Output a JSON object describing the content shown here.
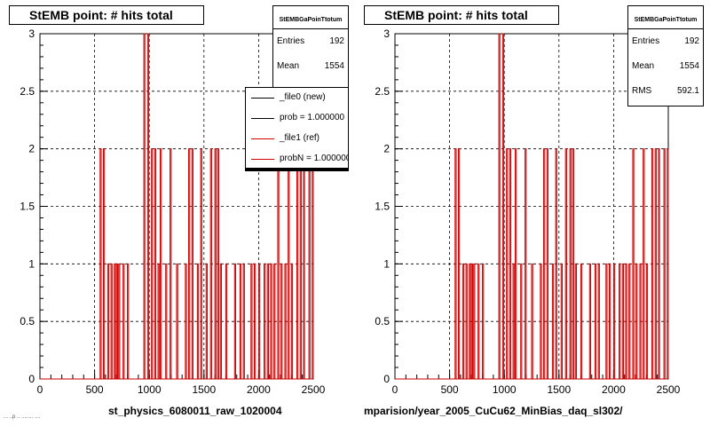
{
  "footer_text": "... ..p  ..  ........ ....",
  "legend": [
    {
      "label": "_file0 (new)",
      "color": "#000000"
    },
    {
      "label": "prob = 1.000000",
      "color": "#000000"
    },
    {
      "label": "_file1 (ref)",
      "color": "#cc0000"
    },
    {
      "label": "probN = 1.000000",
      "color": "#cc0000"
    }
  ],
  "chart_data": [
    {
      "type": "bar",
      "title": "StEMB point: # hits total",
      "xlabel": "st_physics_6080011_raw_1020004",
      "ylabel": "",
      "xlim": [
        0,
        2500
      ],
      "ylim": [
        0,
        3
      ],
      "grid": true,
      "xticks": [
        "0",
        "500",
        "1000",
        "1500",
        "2000",
        "2500"
      ],
      "yticks": [
        "0",
        "0.5",
        "1",
        "1.5",
        "2",
        "2.5",
        "3"
      ],
      "stats": {
        "name": "StEMBGaPoinTtotum",
        "entries_label": "Entries",
        "entries": "192",
        "mean_label": "Mean",
        "mean": "1554",
        "rms_label": "RMS",
        "rms": "592.1"
      },
      "series": [
        {
          "color": "#cc0000",
          "bins": [
            [
              550,
              2
            ],
            [
              580,
              2
            ],
            [
              620,
              1
            ],
            [
              650,
              1
            ],
            [
              680,
              1
            ],
            [
              700,
              1
            ],
            [
              720,
              1
            ],
            [
              760,
              1
            ],
            [
              800,
              1
            ],
            [
              950,
              3
            ],
            [
              985,
              3
            ],
            [
              1020,
              2
            ],
            [
              1050,
              2
            ],
            [
              1080,
              1
            ],
            [
              1100,
              2
            ],
            [
              1150,
              1
            ],
            [
              1190,
              2
            ],
            [
              1250,
              1
            ],
            [
              1330,
              1
            ],
            [
              1360,
              2
            ],
            [
              1390,
              2
            ],
            [
              1440,
              1
            ],
            [
              1470,
              2
            ],
            [
              1520,
              1
            ],
            [
              1560,
              2
            ],
            [
              1600,
              2
            ],
            [
              1625,
              2
            ],
            [
              1650,
              1
            ],
            [
              1700,
              1
            ],
            [
              1780,
              1
            ],
            [
              1830,
              1
            ],
            [
              1860,
              1
            ],
            [
              1930,
              1
            ],
            [
              1960,
              1
            ],
            [
              2000,
              1
            ],
            [
              2050,
              1
            ],
            [
              2080,
              1
            ],
            [
              2110,
              1
            ],
            [
              2140,
              1
            ],
            [
              2175,
              2
            ],
            [
              2205,
              1
            ],
            [
              2240,
              1
            ],
            [
              2270,
              2
            ],
            [
              2300,
              1
            ],
            [
              2350,
              2
            ],
            [
              2380,
              2
            ],
            [
              2410,
              2
            ],
            [
              2460,
              2
            ],
            [
              2490,
              2
            ]
          ]
        }
      ]
    },
    {
      "type": "bar",
      "title": "StEMB point: # hits total",
      "xlabel": "mparision/year_2005_CuCu62_MinBias_daq_sl302/",
      "ylabel": "",
      "xlim": [
        0,
        2500
      ],
      "ylim": [
        0,
        3
      ],
      "grid": true,
      "xticks": [
        "0",
        "500",
        "1000",
        "1500",
        "2000",
        "2500"
      ],
      "yticks": [
        "0",
        "0.5",
        "1",
        "1.5",
        "2",
        "2.5",
        "3"
      ],
      "stats": {
        "name": "StEMBGaPoinTtotum",
        "entries_label": "Entries",
        "entries": "192",
        "mean_label": "Mean",
        "mean": "1554",
        "rms_label": "RMS",
        "rms": "592.1"
      },
      "series": [
        {
          "color": "#cc0000",
          "bins": [
            [
              550,
              2
            ],
            [
              580,
              2
            ],
            [
              620,
              1
            ],
            [
              650,
              1
            ],
            [
              680,
              1
            ],
            [
              700,
              1
            ],
            [
              720,
              1
            ],
            [
              760,
              1
            ],
            [
              800,
              1
            ],
            [
              950,
              3
            ],
            [
              985,
              3
            ],
            [
              1020,
              2
            ],
            [
              1050,
              2
            ],
            [
              1080,
              1
            ],
            [
              1100,
              2
            ],
            [
              1150,
              1
            ],
            [
              1190,
              2
            ],
            [
              1250,
              1
            ],
            [
              1330,
              1
            ],
            [
              1360,
              2
            ],
            [
              1390,
              2
            ],
            [
              1440,
              1
            ],
            [
              1470,
              2
            ],
            [
              1520,
              1
            ],
            [
              1560,
              2
            ],
            [
              1600,
              2
            ],
            [
              1625,
              2
            ],
            [
              1650,
              1
            ],
            [
              1700,
              1
            ],
            [
              1780,
              1
            ],
            [
              1830,
              1
            ],
            [
              1860,
              1
            ],
            [
              1930,
              1
            ],
            [
              1960,
              1
            ],
            [
              2000,
              1
            ],
            [
              2050,
              1
            ],
            [
              2080,
              1
            ],
            [
              2110,
              1
            ],
            [
              2140,
              1
            ],
            [
              2175,
              2
            ],
            [
              2205,
              1
            ],
            [
              2240,
              1
            ],
            [
              2270,
              2
            ],
            [
              2300,
              1
            ],
            [
              2350,
              2
            ],
            [
              2380,
              2
            ],
            [
              2410,
              2
            ],
            [
              2460,
              2
            ],
            [
              2490,
              2
            ]
          ]
        }
      ]
    }
  ]
}
